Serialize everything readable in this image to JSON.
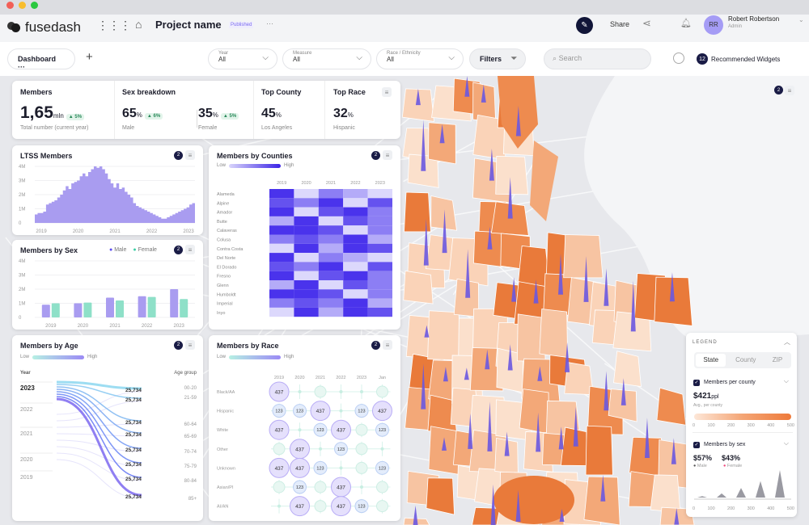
{
  "app": {
    "logo": "fusedash",
    "project": "Project name",
    "status": "Published",
    "more": "···"
  },
  "header": {
    "share": "Share",
    "user_name": "Robert Robertson",
    "user_role": "Admin",
    "avatar": "RR"
  },
  "toolbar": {
    "dashboard": "Dashboard ···",
    "add": "+",
    "filters": [
      {
        "label": "Year",
        "value": "All"
      },
      {
        "label": "Measure",
        "value": "All"
      },
      {
        "label": "Race / Ethnicity",
        "value": "All"
      }
    ],
    "filters_btn": "Filters",
    "search_placeholder": "Search",
    "rec_count": "12",
    "rec_label": "Recommended Widgets"
  },
  "kpi": {
    "members": {
      "title": "Members",
      "value": "1,65",
      "unit": "mln",
      "delta": "5%",
      "sub": "Total number (current year)"
    },
    "sex": {
      "title": "Sex breakdown",
      "male": "65",
      "male_delta": "6%",
      "male_label": "Male",
      "female": "35",
      "female_delta": "5%",
      "female_label": "Female",
      "unit": "%"
    },
    "county": {
      "title": "Top County",
      "value": "45",
      "unit": "%",
      "sub": "Los Angeles"
    },
    "race": {
      "title": "Top Race",
      "value": "32",
      "unit": "%",
      "sub": "Hispanic"
    }
  },
  "cards": {
    "badge": "2"
  },
  "chart_data": [
    {
      "id": "ltss",
      "type": "area",
      "title": "LTSS Members",
      "yticks": [
        "4M",
        "3M",
        "2M",
        "1M",
        "0"
      ],
      "xticks": [
        "2019",
        "2020",
        "2021",
        "2022",
        "2023"
      ],
      "ylim": [
        0,
        4
      ],
      "values": [
        0.6,
        0.7,
        0.7,
        0.8,
        1.3,
        1.4,
        1.5,
        1.6,
        1.8,
        2.0,
        2.3,
        2.6,
        2.4,
        2.8,
        2.9,
        3.0,
        3.3,
        3.5,
        3.3,
        3.6,
        3.8,
        4.0,
        3.9,
        4.0,
        3.8,
        3.5,
        3.1,
        2.8,
        2.5,
        2.8,
        2.4,
        2.5,
        2.2,
        2.0,
        1.8,
        1.4,
        1.2,
        1.1,
        1.0,
        0.9,
        0.8,
        0.7,
        0.6,
        0.5,
        0.4,
        0.3,
        0.3,
        0.4,
        0.5,
        0.6,
        0.7,
        0.8,
        0.9,
        1.0,
        1.1,
        1.3,
        1.4
      ]
    },
    {
      "id": "sex",
      "type": "bar",
      "title": "Members by Sex",
      "yticks": [
        "4M",
        "3M",
        "2M",
        "1M",
        "0"
      ],
      "categories": [
        "2019",
        "2020",
        "2021",
        "2022",
        "2023"
      ],
      "ylim": [
        0,
        4
      ],
      "series": [
        {
          "name": "Male",
          "color": "#a99cf0",
          "values": [
            0.9,
            1.0,
            1.4,
            1.5,
            2.0
          ]
        },
        {
          "name": "Female",
          "color": "#8ee0c8",
          "values": [
            1.0,
            1.05,
            1.2,
            1.45,
            1.3
          ]
        }
      ]
    },
    {
      "id": "counties",
      "type": "heatmap",
      "title": "Members by Counties",
      "low": "Low",
      "high": "High",
      "columns": [
        "2019",
        "2020",
        "2021",
        "2022",
        "2023"
      ],
      "rows": [
        "Alameda",
        "Alpine",
        "Amador",
        "Butte",
        "Calaveras",
        "Colusa",
        "Contra Costa",
        "Del Norte",
        "El Dorado",
        "Fresno",
        "Glenn",
        "Humboldt",
        "Imperial",
        "Inyo"
      ],
      "values": [
        [
          5,
          1,
          3,
          2,
          1
        ],
        [
          4,
          3,
          5,
          1,
          4
        ],
        [
          5,
          1,
          4,
          5,
          3
        ],
        [
          2,
          5,
          1,
          4,
          3
        ],
        [
          5,
          5,
          4,
          1,
          3
        ],
        [
          3,
          4,
          3,
          5,
          2
        ],
        [
          1,
          5,
          2,
          5,
          4
        ],
        [
          5,
          1,
          3,
          2,
          1
        ],
        [
          4,
          3,
          5,
          1,
          4
        ],
        [
          5,
          1,
          4,
          5,
          3
        ],
        [
          2,
          5,
          1,
          4,
          3
        ],
        [
          5,
          5,
          4,
          1,
          3
        ],
        [
          3,
          4,
          3,
          5,
          2
        ],
        [
          1,
          5,
          2,
          5,
          4
        ]
      ]
    },
    {
      "id": "age",
      "type": "sankey",
      "title": "Members by Age",
      "low": "Low",
      "high": "High",
      "year_header": "Year",
      "group_header": "Age group",
      "years": [
        "2023",
        "2022",
        "2021",
        "2020",
        "2019"
      ],
      "groups": [
        "00-20",
        "21-59",
        "60-64",
        "65-69",
        "70-74",
        "75-79",
        "80-84",
        "85+"
      ],
      "values": [
        "25,734",
        "25,734",
        "25,734",
        "25,734",
        "25,734",
        "25,734",
        "25,734",
        "25,734"
      ]
    },
    {
      "id": "race",
      "type": "bubble",
      "title": "Members by Race",
      "low": "Low",
      "high": "High",
      "columns": [
        "2019",
        "2020",
        "2021",
        "2022",
        "2023",
        "Jan"
      ],
      "rows": [
        "Black/AA",
        "Hispanic",
        "White",
        "Other",
        "Unknown",
        "Asian/PI",
        "AI/AN"
      ],
      "values": [
        [
          437,
          0,
          1,
          0,
          0,
          1
        ],
        [
          123,
          123,
          437,
          0,
          123,
          437
        ],
        [
          437,
          0,
          123,
          437,
          1,
          123
        ],
        [
          1,
          437,
          0,
          123,
          1,
          0
        ],
        [
          437,
          437,
          123,
          0,
          1,
          123
        ],
        [
          1,
          123,
          1,
          437,
          0,
          1
        ],
        [
          0,
          437,
          1,
          437,
          123,
          1
        ]
      ]
    }
  ],
  "legend": {
    "title": "LEGEND",
    "tabs": [
      "State",
      "County",
      "ZIP"
    ],
    "active_tab": "State",
    "mpc_title": "Members per county",
    "mpc_value": "$421",
    "mpc_unit": "ppl",
    "mpc_sub": "Avg., per county",
    "scale": [
      "0",
      "100",
      "200",
      "300",
      "400",
      "500"
    ],
    "mbs_title": "Members by sex",
    "male_pct": "$57%",
    "female_pct": "$43%",
    "male": "Male",
    "female": "Female",
    "male_color": "#555",
    "female_color": "#f0457a",
    "spikes": [
      0.05,
      0.15,
      0.35,
      0.6,
      1.0
    ]
  },
  "colors": {
    "accent": "#6b5cf0",
    "orange": "#ef8a4a",
    "navy": "#1a1c46"
  }
}
